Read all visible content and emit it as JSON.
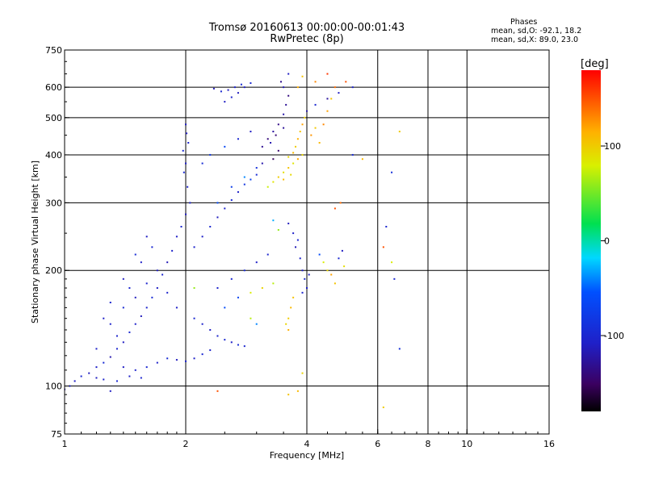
{
  "header": {
    "title_line1": "Tromsø 20160613 00:00:00-00:01:43",
    "title_line2": "RwPretec (8p)"
  },
  "phases": {
    "heading": "Phases",
    "line_o": "mean, sd,O: -92.1, 18.2",
    "line_x": "mean, sd,X:  89.0, 23.0"
  },
  "colorbar": {
    "unit_label": "[deg]",
    "range": [
      -180,
      180
    ],
    "ticks": [
      {
        "value": 100,
        "label": "100"
      },
      {
        "value": 0,
        "label": "0"
      },
      {
        "value": -100,
        "label": "-100"
      }
    ]
  },
  "chart_data": {
    "type": "scatter",
    "xlabel": "Frequency [MHz]",
    "ylabel": "Stationary phase Virtual Height [km]",
    "xscale": "log",
    "yscale": "log",
    "xlim": [
      1,
      16
    ],
    "ylim": [
      75,
      750
    ],
    "xticks": [
      {
        "value": 1,
        "label": "1"
      },
      {
        "value": 2,
        "label": "2"
      },
      {
        "value": 4,
        "label": "4"
      },
      {
        "value": 6,
        "label": "6"
      },
      {
        "value": 8,
        "label": "8"
      },
      {
        "value": 10,
        "label": "10"
      },
      {
        "value": 16,
        "label": "16"
      }
    ],
    "yticks": [
      {
        "value": 75,
        "label": "75"
      },
      {
        "value": 100,
        "label": "100"
      },
      {
        "value": 200,
        "label": "200"
      },
      {
        "value": 300,
        "label": "300"
      },
      {
        "value": 400,
        "label": "400"
      },
      {
        "value": 500,
        "label": "500"
      },
      {
        "value": 600,
        "label": "600"
      },
      {
        "value": 750,
        "label": "750"
      }
    ],
    "xgrid": [
      2,
      4,
      6,
      8,
      10
    ],
    "ygrid": [
      100,
      200,
      300,
      400,
      500,
      600
    ],
    "grid": true,
    "color_variable": "phase [deg]",
    "points_columns": [
      "freq_MHz",
      "height_km",
      "phase_deg"
    ],
    "points": [
      [
        1.0,
        98,
        -115
      ],
      [
        1.03,
        100,
        -105
      ],
      [
        1.06,
        103,
        -110
      ],
      [
        1.1,
        106,
        -100
      ],
      [
        1.15,
        108,
        -112
      ],
      [
        1.2,
        112,
        -108
      ],
      [
        1.25,
        115,
        -95
      ],
      [
        1.3,
        119,
        -118
      ],
      [
        1.35,
        125,
        -102
      ],
      [
        1.4,
        130,
        -110
      ],
      [
        1.45,
        138,
        -99
      ],
      [
        1.5,
        145,
        -107
      ],
      [
        1.55,
        152,
        -113
      ],
      [
        1.6,
        160,
        -104
      ],
      [
        1.65,
        170,
        -96
      ],
      [
        1.7,
        180,
        -110
      ],
      [
        1.75,
        195,
        -101
      ],
      [
        1.8,
        210,
        -115
      ],
      [
        1.85,
        225,
        -105
      ],
      [
        1.9,
        245,
        -109
      ],
      [
        1.95,
        260,
        -100
      ],
      [
        2.0,
        280,
        -112
      ],
      [
        2.02,
        330,
        -106
      ],
      [
        2.0,
        380,
        -108
      ],
      [
        2.03,
        430,
        -103
      ],
      [
        2.0,
        480,
        -111
      ],
      [
        1.98,
        360,
        -97
      ],
      [
        2.05,
        300,
        -104
      ],
      [
        1.97,
        410,
        -99
      ],
      [
        2.01,
        455,
        -110
      ],
      [
        1.25,
        150,
        -108
      ],
      [
        1.3,
        145,
        -105
      ],
      [
        1.4,
        160,
        -98
      ],
      [
        1.5,
        170,
        -112
      ],
      [
        1.6,
        185,
        -103
      ],
      [
        1.7,
        200,
        -110
      ],
      [
        1.35,
        135,
        -104
      ],
      [
        1.45,
        180,
        -101
      ],
      [
        1.55,
        210,
        -108
      ],
      [
        1.65,
        230,
        -99
      ],
      [
        1.2,
        125,
        -107
      ],
      [
        1.3,
        165,
        -102
      ],
      [
        1.4,
        190,
        -111
      ],
      [
        1.5,
        220,
        -95
      ],
      [
        1.6,
        245,
        -110
      ],
      [
        1.8,
        175,
        -104
      ],
      [
        1.9,
        160,
        -108
      ],
      [
        2.1,
        150,
        -100
      ],
      [
        2.2,
        145,
        -106
      ],
      [
        2.3,
        140,
        -110
      ],
      [
        2.4,
        135,
        -103
      ],
      [
        2.5,
        132,
        -99
      ],
      [
        2.6,
        130,
        -108
      ],
      [
        2.7,
        128,
        -95
      ],
      [
        2.8,
        127,
        -101
      ],
      [
        1.4,
        112,
        -110
      ],
      [
        1.5,
        110,
        -104
      ],
      [
        1.6,
        112,
        -100
      ],
      [
        1.7,
        115,
        -107
      ],
      [
        1.8,
        118,
        -97
      ],
      [
        1.9,
        117,
        -112
      ],
      [
        2.0,
        116,
        -103
      ],
      [
        2.1,
        118,
        -108
      ],
      [
        2.2,
        121,
        -100
      ],
      [
        2.3,
        124,
        -105
      ],
      [
        1.2,
        105,
        -111
      ],
      [
        1.25,
        104,
        -104
      ],
      [
        1.35,
        103,
        -99
      ],
      [
        1.45,
        106,
        -108
      ],
      [
        1.55,
        105,
        -102
      ],
      [
        2.1,
        230,
        -105
      ],
      [
        2.2,
        245,
        -108
      ],
      [
        2.3,
        260,
        -100
      ],
      [
        2.4,
        275,
        -112
      ],
      [
        2.5,
        290,
        -104
      ],
      [
        2.6,
        305,
        -98
      ],
      [
        2.7,
        320,
        -107
      ],
      [
        2.8,
        335,
        -85
      ],
      [
        2.9,
        345,
        -70
      ],
      [
        3.0,
        355,
        -95
      ],
      [
        2.4,
        300,
        -60
      ],
      [
        2.6,
        330,
        -75
      ],
      [
        2.8,
        350,
        -40
      ],
      [
        3.0,
        370,
        -90
      ],
      [
        3.1,
        380,
        -120
      ],
      [
        2.2,
        380,
        -95
      ],
      [
        2.3,
        400,
        -80
      ],
      [
        2.5,
        420,
        -65
      ],
      [
        2.7,
        440,
        -100
      ],
      [
        2.9,
        460,
        -110
      ],
      [
        2.5,
        550,
        -110
      ],
      [
        2.6,
        565,
        -105
      ],
      [
        2.7,
        580,
        -112
      ],
      [
        2.8,
        600,
        -108
      ],
      [
        2.9,
        615,
        -100
      ],
      [
        2.35,
        595,
        -115
      ],
      [
        2.45,
        585,
        -100
      ],
      [
        2.55,
        590,
        -111
      ],
      [
        2.65,
        600,
        -104
      ],
      [
        2.75,
        610,
        -98
      ],
      [
        3.1,
        420,
        -130
      ],
      [
        3.2,
        440,
        -140
      ],
      [
        3.3,
        460,
        -125
      ],
      [
        3.4,
        480,
        -135
      ],
      [
        3.5,
        510,
        -120
      ],
      [
        3.55,
        540,
        -128
      ],
      [
        3.6,
        570,
        -138
      ],
      [
        3.5,
        600,
        -115
      ],
      [
        3.45,
        620,
        -132
      ],
      [
        3.6,
        650,
        -110
      ],
      [
        3.3,
        390,
        -150
      ],
      [
        3.4,
        410,
        -145
      ],
      [
        3.25,
        430,
        -118
      ],
      [
        3.35,
        450,
        -142
      ],
      [
        3.5,
        470,
        -127
      ],
      [
        3.6,
        395,
        95
      ],
      [
        3.7,
        405,
        110
      ],
      [
        3.75,
        420,
        100
      ],
      [
        3.8,
        440,
        115
      ],
      [
        3.85,
        460,
        105
      ],
      [
        3.9,
        480,
        120
      ],
      [
        3.95,
        500,
        98
      ],
      [
        4.0,
        520,
        112
      ],
      [
        4.1,
        450,
        125
      ],
      [
        4.2,
        470,
        102
      ],
      [
        3.5,
        360,
        90
      ],
      [
        3.6,
        370,
        105
      ],
      [
        3.7,
        380,
        85
      ],
      [
        3.8,
        390,
        118
      ],
      [
        3.9,
        400,
        95
      ],
      [
        4.3,
        430,
        110
      ],
      [
        4.4,
        480,
        130
      ],
      [
        4.5,
        520,
        120
      ],
      [
        4.6,
        560,
        105
      ],
      [
        4.7,
        600,
        140
      ],
      [
        3.3,
        340,
        85
      ],
      [
        3.4,
        350,
        100
      ],
      [
        3.2,
        330,
        75
      ],
      [
        3.5,
        345,
        110
      ],
      [
        3.65,
        355,
        92
      ],
      [
        3.8,
        600,
        115
      ],
      [
        3.9,
        640,
        105
      ],
      [
        4.2,
        620,
        130
      ],
      [
        4.5,
        650,
        160
      ],
      [
        5.0,
        620,
        150
      ],
      [
        4.0,
        520,
        -115
      ],
      [
        4.2,
        540,
        -100
      ],
      [
        4.5,
        560,
        -125
      ],
      [
        4.8,
        580,
        -110
      ],
      [
        5.2,
        600,
        -105
      ],
      [
        2.4,
        180,
        -105
      ],
      [
        2.6,
        190,
        -100
      ],
      [
        2.8,
        200,
        -95
      ],
      [
        3.0,
        210,
        -108
      ],
      [
        3.2,
        220,
        -102
      ],
      [
        2.7,
        170,
        -70
      ],
      [
        2.9,
        175,
        80
      ],
      [
        3.1,
        180,
        95
      ],
      [
        3.3,
        185,
        70
      ],
      [
        2.5,
        160,
        -60
      ],
      [
        3.6,
        150,
        100
      ],
      [
        3.65,
        160,
        110
      ],
      [
        3.7,
        170,
        105
      ],
      [
        3.6,
        140,
        115
      ],
      [
        3.55,
        145,
        95
      ],
      [
        3.6,
        265,
        -112
      ],
      [
        3.7,
        250,
        -108
      ],
      [
        3.8,
        240,
        -100
      ],
      [
        3.75,
        230,
        -115
      ],
      [
        3.85,
        215,
        -105
      ],
      [
        3.9,
        200,
        -110
      ],
      [
        3.95,
        190,
        -98
      ],
      [
        4.0,
        180,
        -107
      ],
      [
        3.9,
        175,
        -102
      ],
      [
        4.05,
        195,
        -111
      ],
      [
        4.3,
        220,
        -60
      ],
      [
        4.4,
        210,
        80
      ],
      [
        4.5,
        200,
        95
      ],
      [
        4.6,
        195,
        120
      ],
      [
        4.7,
        185,
        105
      ],
      [
        4.8,
        215,
        -100
      ],
      [
        4.9,
        225,
        -110
      ],
      [
        4.95,
        205,
        90
      ],
      [
        4.7,
        290,
        150
      ],
      [
        4.85,
        300,
        140
      ],
      [
        5.2,
        400,
        -95
      ],
      [
        5.5,
        390,
        110
      ],
      [
        6.2,
        230,
        150
      ],
      [
        6.3,
        260,
        -100
      ],
      [
        6.5,
        360,
        -90
      ],
      [
        6.8,
        460,
        100
      ],
      [
        6.6,
        190,
        -100
      ],
      [
        6.8,
        125,
        -90
      ],
      [
        6.2,
        88,
        100
      ],
      [
        6.5,
        210,
        80
      ],
      [
        3.6,
        95,
        105
      ],
      [
        3.8,
        97,
        110
      ],
      [
        2.4,
        97,
        150
      ],
      [
        1.3,
        97,
        -110
      ],
      [
        3.9,
        108,
        95
      ],
      [
        3.0,
        145,
        -40
      ],
      [
        2.9,
        150,
        70
      ],
      [
        3.4,
        255,
        60
      ],
      [
        3.3,
        270,
        -30
      ],
      [
        2.1,
        180,
        60
      ]
    ]
  }
}
